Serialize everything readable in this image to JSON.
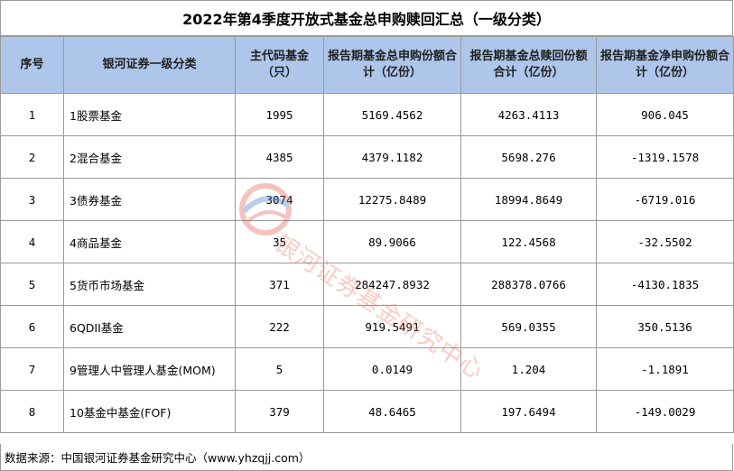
{
  "title": "2022年第4季度开放式基金总申购赎回汇总（一级分类）",
  "columns": [
    "序号",
    "银河证券一级分类",
    "主代码基金（只）",
    "报告期基金总申购份额合计（亿份）",
    "报告期基金总赎回份额合计（亿份）",
    "报告期基金净申购份额合计（亿份）"
  ],
  "rows": [
    {
      "no": "1",
      "category": "1股票基金",
      "count": "1995",
      "purchase": "5169.4562",
      "redemption": "4263.4113",
      "net": "906.045"
    },
    {
      "no": "2",
      "category": "2混合基金",
      "count": "4385",
      "purchase": "4379.1182",
      "redemption": "5698.276",
      "net": "-1319.1578"
    },
    {
      "no": "3",
      "category": "3债券基金",
      "count": "3074",
      "purchase": "12275.8489",
      "redemption": "18994.8649",
      "net": "-6719.016"
    },
    {
      "no": "4",
      "category": "4商品基金",
      "count": "35",
      "purchase": "89.9066",
      "redemption": "122.4568",
      "net": "-32.5502"
    },
    {
      "no": "5",
      "category": "5货币市场基金",
      "count": "371",
      "purchase": "284247.8932",
      "redemption": "288378.0766",
      "net": "-4130.1835"
    },
    {
      "no": "6",
      "category": "6QDII基金",
      "count": "222",
      "purchase": "919.5491",
      "redemption": "569.0355",
      "net": "350.5136"
    },
    {
      "no": "7",
      "category": "9管理人中管理人基金(MOM)",
      "count": "5",
      "purchase": "0.0149",
      "redemption": "1.204",
      "net": "-1.1891"
    },
    {
      "no": "8",
      "category": "10基金中基金(FOF)",
      "count": "379",
      "purchase": "48.6465",
      "redemption": "197.6494",
      "net": "-149.0029"
    }
  ],
  "source": "数据来源：中国银河证券基金研究中心（www.yhzqjj.com）",
  "watermark": {
    "text": "银河证券基金研究中心",
    "icon": "galaxy-logo-icon"
  },
  "colors": {
    "header_bg": "#adc6ea",
    "border": "#9a9a9a",
    "watermark": "#ec7860"
  }
}
